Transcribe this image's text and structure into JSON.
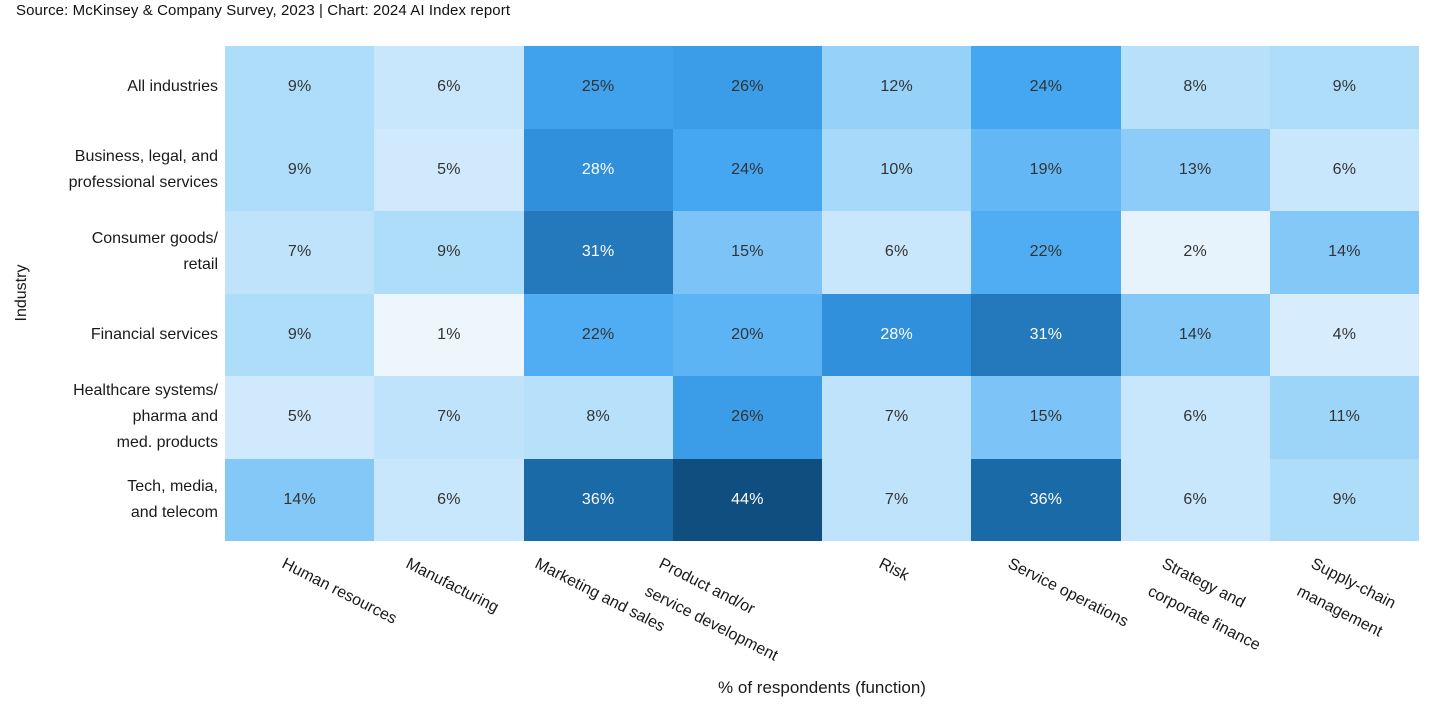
{
  "source_line": "Source: McKinsey & Company Survey, 2023 | Chart: 2024 AI Index report",
  "chart_data": {
    "type": "heatmap",
    "xlabel": "% of respondents (function)",
    "ylabel": "Industry",
    "unit": "%",
    "columns": [
      "Human resources",
      "Manufacturing",
      "Marketing and sales",
      "Product and/or\nservice development",
      "Risk",
      "Service operations",
      "Strategy and\ncorporate finance",
      "Supply-chain\nmanagement"
    ],
    "rows": [
      "All industries",
      "Business, legal, and\nprofessional services",
      "Consumer goods/\nretail",
      "Financial services",
      "Healthcare systems/\npharma and\nmed. products",
      "Tech, media,\nand telecom"
    ],
    "values": [
      [
        9,
        6,
        25,
        26,
        12,
        24,
        8,
        9
      ],
      [
        9,
        5,
        28,
        24,
        10,
        19,
        13,
        6
      ],
      [
        7,
        9,
        31,
        15,
        6,
        22,
        2,
        14
      ],
      [
        9,
        1,
        22,
        20,
        28,
        31,
        14,
        4
      ],
      [
        5,
        7,
        8,
        26,
        7,
        15,
        6,
        11
      ],
      [
        14,
        6,
        36,
        44,
        7,
        36,
        6,
        9
      ]
    ],
    "color_scale": {
      "stops": [
        [
          1,
          "#eef6fd"
        ],
        [
          6,
          "#c8e6fc"
        ],
        [
          9,
          "#aeddfa"
        ],
        [
          15,
          "#7cc4f8"
        ],
        [
          24,
          "#45a7f2"
        ],
        [
          28,
          "#3090db"
        ],
        [
          31,
          "#2379bc"
        ],
        [
          36,
          "#1a6aa8"
        ],
        [
          44,
          "#114e80"
        ]
      ],
      "light_text_threshold": 28,
      "dark_text_color": "#333333",
      "light_text_color": "#ffffff"
    },
    "layout": {
      "grid_on": false,
      "value_labels_in_cells": true,
      "x_tick_rotation_deg": 27
    }
  }
}
